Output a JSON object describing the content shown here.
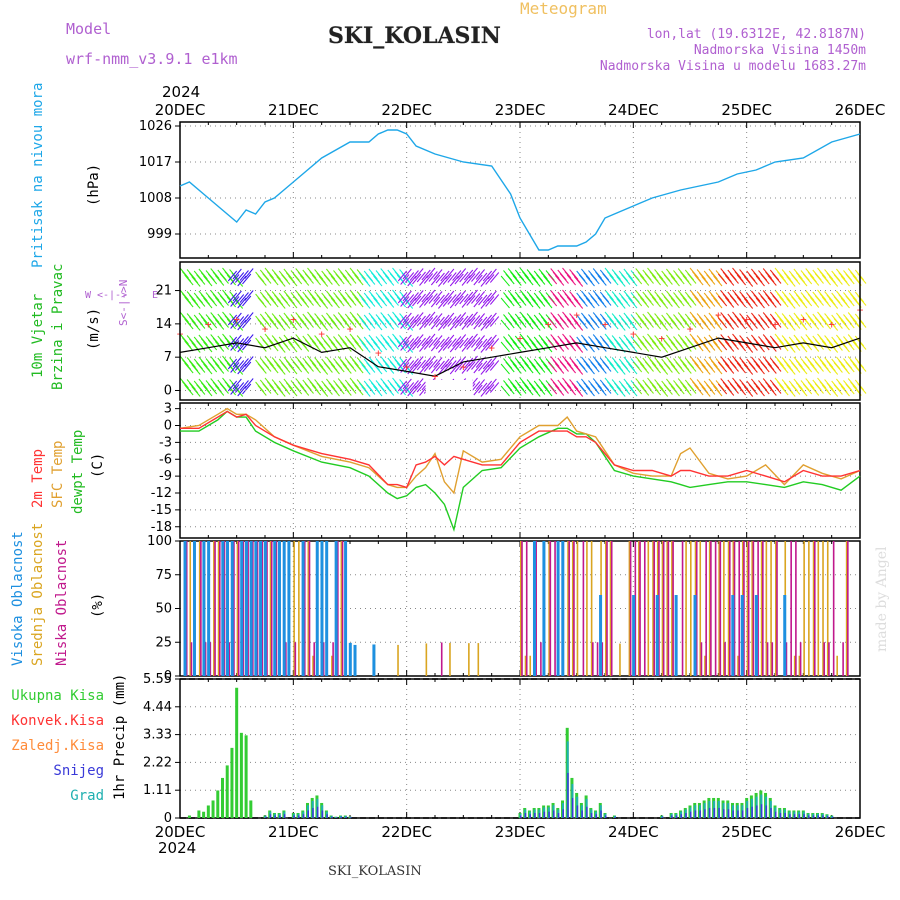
{
  "header": {
    "model_label": "Model",
    "model_name": "wrf-nmm_v3.9.1 e1km",
    "product": "Meteogram",
    "station": "SKI_KOLASIN",
    "lonlat": "lon,lat (19.6312E, 42.8187N)",
    "altitude": "Nadmorska Visina 1450m",
    "model_altitude": "Nadmorska Visina u modelu 1683.27m",
    "year": "2024",
    "footer_station": "SKI_KOLASIN",
    "credit": "made by Angel"
  },
  "colors": {
    "pressure": "#1ea7e8",
    "wind_speed": "#000000",
    "gust": "#ff3333",
    "temp2m": "#ff3333",
    "sfc_temp": "#e0a030",
    "dewpoint": "#22cc22",
    "cloud_high": "#1e90e0",
    "cloud_mid": "#daa520",
    "cloud_low": "#c0188c",
    "precip_total": "#33cc33",
    "precip_conv": "#ff3333",
    "precip_freezing": "#ff8c3a",
    "precip_snow": "#3a3ad8",
    "precip_graupel": "#20b0b0"
  },
  "x_dates": [
    "20DEC",
    "21DEC",
    "22DEC",
    "23DEC",
    "24DEC",
    "25DEC",
    "26DEC"
  ],
  "panels": {
    "pressure": {
      "label": "Pritisak na nivou mora",
      "unit": "(hPa)"
    },
    "wind": {
      "label_1": "10m Vjetar",
      "label_2": "Brzina i Pravac",
      "unit": "(m/s)"
    },
    "temp": {
      "label_2m": "2m Temp",
      "label_sfc": "SFC Temp",
      "label_dew": "dewpt Temp",
      "unit": "(C)"
    },
    "cloud": {
      "label_high": "Visoka Oblacnost",
      "label_mid": "Srednja Oblacnost",
      "label_low": "Niska Oblacnost",
      "unit": "(%)"
    },
    "precip": {
      "label_total": "Ukupna Kisa",
      "label_conv": "Konvek.Kisa",
      "label_freezing": "Zaledj.Kisa",
      "label_snow": "Snijeg",
      "label_graupel": "Grad",
      "unit": "1hr Precip (mm)"
    }
  },
  "chart_data": [
    {
      "type": "line",
      "id": "pressure",
      "ylabel": "Pritisak na nivou mora (hPa)",
      "yticks": [
        999,
        1008,
        1017,
        1026
      ],
      "ylim": [
        993,
        1027
      ],
      "xlim_hours": [
        0,
        144
      ],
      "x_hours": [
        0,
        2,
        6,
        10,
        12,
        14,
        16,
        18,
        20,
        22,
        26,
        30,
        36,
        40,
        42,
        44,
        46,
        48,
        50,
        54,
        60,
        66,
        70,
        72,
        76,
        78,
        80,
        82,
        84,
        86,
        88,
        90,
        92,
        96,
        100,
        106,
        110,
        114,
        118,
        122,
        126,
        132,
        138,
        144
      ],
      "series": [
        {
          "values": [
            1011,
            1012,
            1008,
            1004,
            1002,
            1005,
            1004,
            1007,
            1008,
            1010,
            1014,
            1018,
            1022,
            1022,
            1024,
            1025,
            1025,
            1024,
            1021,
            1019,
            1017,
            1016,
            1009,
            1003,
            995,
            995,
            996,
            996,
            996,
            997,
            999,
            1003,
            1004,
            1006,
            1008,
            1010,
            1011,
            1012,
            1014,
            1015,
            1017,
            1018,
            1022,
            1024
          ]
        }
      ]
    },
    {
      "type": "line",
      "id": "wind",
      "ylabel": "10m Vjetar Brzina i Pravac (m/s)",
      "yticks": [
        0,
        7,
        14,
        21
      ],
      "ylim": [
        -2,
        27
      ],
      "direction_labels": {
        "n": "N",
        "s": "S",
        "w": "W",
        "e": "E"
      },
      "x_hours": [
        0,
        6,
        12,
        18,
        24,
        30,
        36,
        42,
        48,
        54,
        60,
        66,
        72,
        78,
        84,
        90,
        96,
        102,
        108,
        114,
        120,
        126,
        132,
        138,
        144
      ],
      "series": [
        {
          "values": [
            8,
            9,
            10,
            9,
            11,
            8,
            9,
            5,
            4,
            3,
            6,
            7,
            8,
            9,
            10,
            9,
            8,
            7,
            9,
            11,
            10,
            9,
            10,
            9,
            11
          ]
        },
        {
          "values": [
            12,
            14,
            15,
            13,
            15,
            12,
            13,
            8,
            5,
            3,
            5,
            9,
            11,
            14,
            16,
            14,
            12,
            11,
            13,
            16,
            15,
            14,
            15,
            14,
            17
          ]
        }
      ]
    },
    {
      "type": "line",
      "id": "temperature",
      "ylabel": "(C)",
      "yticks": [
        -18,
        -15,
        -12,
        -9,
        -6,
        -3,
        0,
        3
      ],
      "ylim": [
        -20,
        4
      ],
      "x_hours": [
        0,
        4,
        8,
        10,
        12,
        14,
        16,
        20,
        24,
        30,
        36,
        40,
        44,
        46,
        48,
        50,
        52,
        54,
        56,
        58,
        60,
        64,
        68,
        72,
        76,
        80,
        82,
        84,
        86,
        88,
        92,
        96,
        100,
        104,
        106,
        108,
        112,
        116,
        120,
        124,
        128,
        132,
        136,
        140,
        144
      ],
      "series": [
        {
          "values": [
            -0.5,
            -0.5,
            1.5,
            2.5,
            1.5,
            2,
            0,
            -2,
            -3.5,
            -5,
            -6,
            -7,
            -10.5,
            -10.5,
            -11,
            -7,
            -6.5,
            -5.5,
            -7,
            -5.5,
            -6,
            -7,
            -7,
            -3,
            -1,
            -1,
            -1,
            -2,
            -2,
            -3,
            -7,
            -8,
            -8,
            -9,
            -8,
            -8,
            -9,
            -9,
            -8,
            -9,
            -10,
            -8,
            -9,
            -9,
            -8
          ]
        },
        {
          "values": [
            -0.5,
            0,
            2,
            3,
            2,
            2,
            1,
            -2,
            -3.5,
            -5.5,
            -6.5,
            -7.5,
            -10.5,
            -11,
            -11,
            -9,
            -7.5,
            -5,
            -10,
            -12,
            -4.5,
            -6.5,
            -6,
            -2,
            0,
            0,
            1.5,
            -1,
            -1.5,
            -2,
            -7,
            -8.5,
            -9,
            -9,
            -5,
            -4,
            -8.5,
            -9.5,
            -9,
            -7,
            -10.5,
            -7,
            -8.5,
            -9.5,
            -8
          ]
        },
        {
          "values": [
            -1,
            -1,
            1,
            2.5,
            1.5,
            1.5,
            -1,
            -3,
            -4.5,
            -6.5,
            -7.5,
            -9,
            -12,
            -13,
            -12.5,
            -11,
            -10.5,
            -12,
            -14,
            -18.5,
            -11,
            -8,
            -7.5,
            -4,
            -2,
            -0.5,
            -0.5,
            -1.5,
            -1.5,
            -3,
            -8,
            -9,
            -9.5,
            -10,
            -10.5,
            -11,
            -10.5,
            -10,
            -10,
            -10.5,
            -11,
            -10,
            -10.5,
            -11.5,
            -9
          ]
        }
      ]
    },
    {
      "type": "bar",
      "id": "cloud_cover",
      "ylabel": "(%)",
      "yticks": [
        0,
        25,
        50,
        75,
        100
      ],
      "ylim": [
        0,
        100
      ],
      "series": [
        {
          "values_by_hour": "high"
        },
        {
          "values_by_hour": "mid"
        },
        {
          "values_by_hour": "low"
        }
      ]
    },
    {
      "type": "bar",
      "id": "precipitation",
      "ylabel": "1hr Precip (mm)",
      "yticks": [
        0,
        1.11,
        2.22,
        3.33,
        4.44,
        5.55
      ],
      "ylim": [
        0,
        5.55
      ],
      "x_hours": [
        2,
        4,
        5,
        6,
        7,
        8,
        9,
        10,
        11,
        12,
        13,
        14,
        15,
        18,
        19,
        20,
        21,
        22,
        24,
        25,
        26,
        27,
        28,
        29,
        30,
        31,
        32,
        33,
        34,
        35,
        36,
        72,
        73,
        74,
        75,
        76,
        77,
        78,
        79,
        80,
        81,
        82,
        83,
        84,
        85,
        86,
        87,
        88,
        89,
        90,
        92,
        102,
        104,
        105,
        106,
        107,
        108,
        109,
        110,
        111,
        112,
        113,
        114,
        115,
        116,
        117,
        118,
        119,
        120,
        121,
        122,
        123,
        124,
        125,
        126,
        127,
        128,
        129,
        130,
        131,
        132,
        133,
        134,
        135,
        136,
        137,
        138
      ],
      "series": [
        {
          "values": [
            0.1,
            0.3,
            0.25,
            0.5,
            0.7,
            1.1,
            1.6,
            2.1,
            2.8,
            5.2,
            3.4,
            3.3,
            0.7,
            0.1,
            0.3,
            0.2,
            0.2,
            0.3,
            0.2,
            0.2,
            0.3,
            0.6,
            0.8,
            0.9,
            0.6,
            0.3,
            0.1,
            0.05,
            0.1,
            0.1,
            0.05,
            0.2,
            0.4,
            0.3,
            0.4,
            0.4,
            0.5,
            0.5,
            0.6,
            0.4,
            0.7,
            3.6,
            1.6,
            1.0,
            0.6,
            0.9,
            0.4,
            0.3,
            0.6,
            0.2,
            0.1,
            0.1,
            0.2,
            0.2,
            0.3,
            0.4,
            0.5,
            0.6,
            0.6,
            0.7,
            0.8,
            0.8,
            0.8,
            0.7,
            0.7,
            0.6,
            0.6,
            0.6,
            0.8,
            0.9,
            1.0,
            1.1,
            1.0,
            0.8,
            0.5,
            0.4,
            0.4,
            0.3,
            0.3,
            0.3,
            0.3,
            0.2,
            0.2,
            0.2,
            0.2,
            0.15,
            0.1
          ]
        }
      ]
    }
  ]
}
